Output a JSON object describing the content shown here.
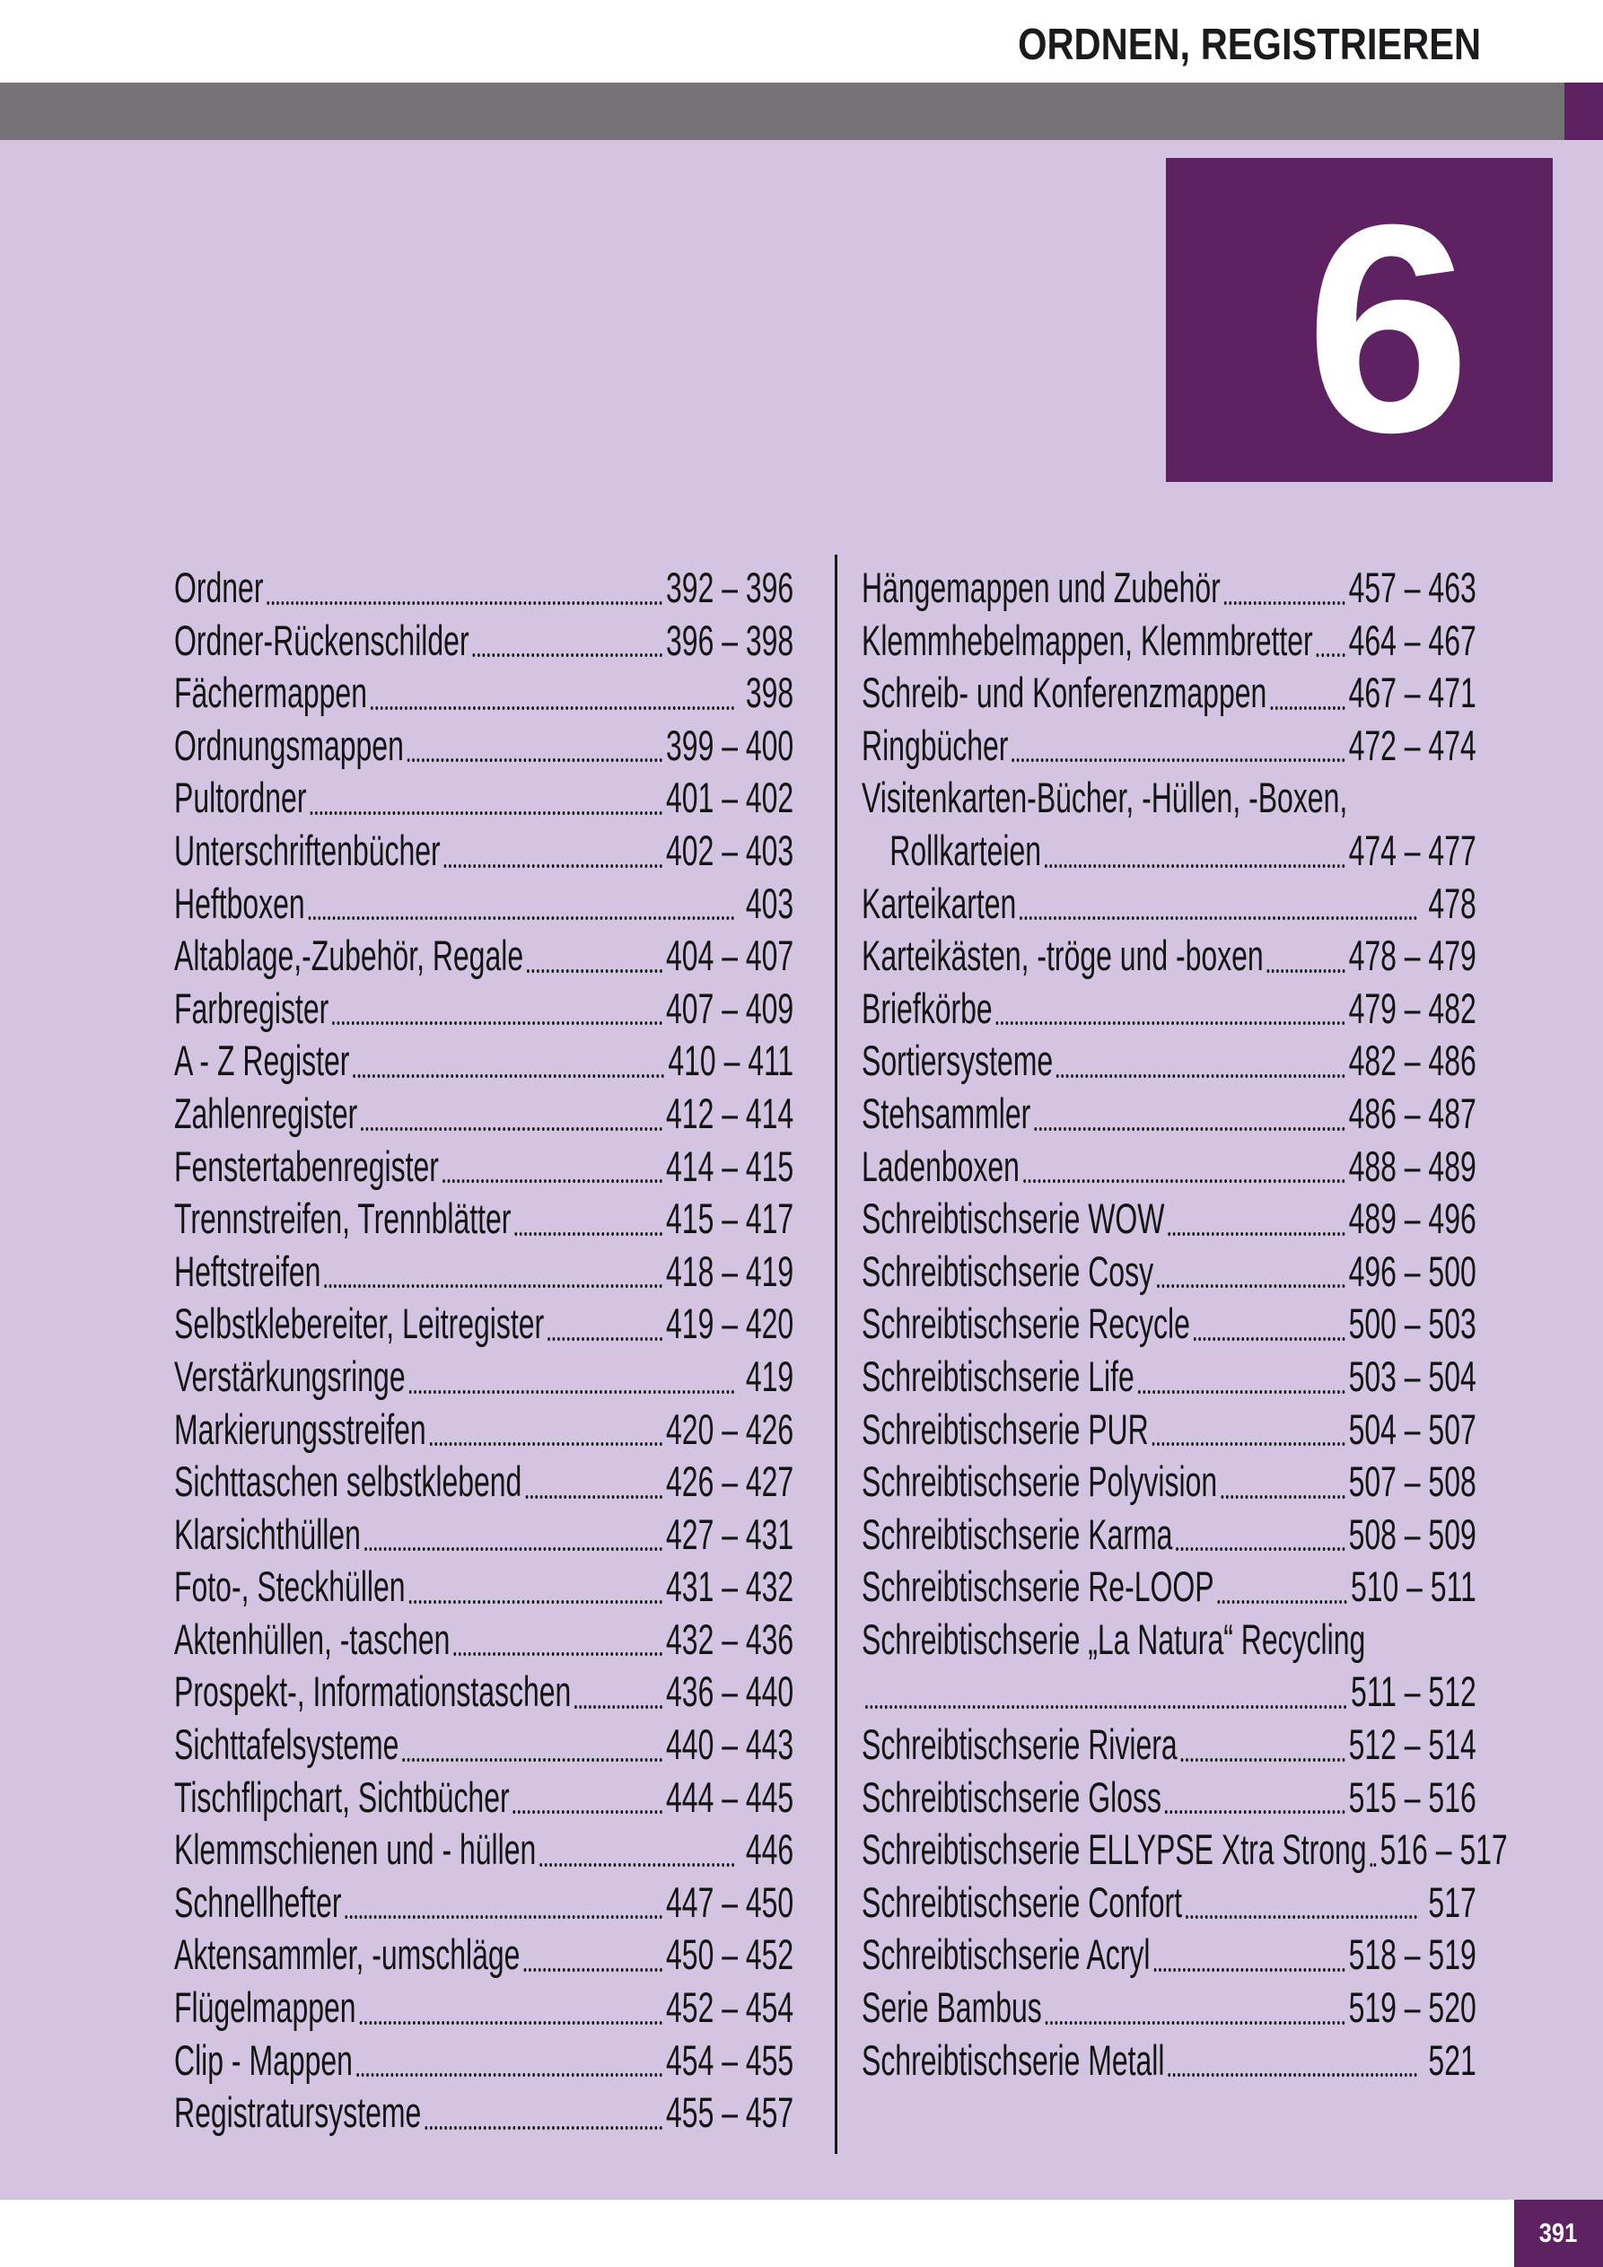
{
  "header": {
    "title": "ORDNEN, REGISTRIEREN"
  },
  "chapter": {
    "number": "6"
  },
  "footer": {
    "page_number": "391"
  },
  "colors": {
    "accent_purple": "#5e2162",
    "lavender_background": "#d3c4e1",
    "gray_bar": "#757175",
    "text": "#141414"
  },
  "toc": {
    "left_column": [
      {
        "label": "Ordner",
        "pages": "392 – 396"
      },
      {
        "label": "Ordner-Rückenschilder",
        "pages": "396 – 398"
      },
      {
        "label": "Fächermappen",
        "pages": " 398"
      },
      {
        "label": "Ordnungsmappen",
        "pages": "399 – 400"
      },
      {
        "label": "Pultordner",
        "pages": "401 – 402"
      },
      {
        "label": "Unterschriftenbücher",
        "pages": "402 – 403"
      },
      {
        "label": "Heftboxen",
        "pages": " 403"
      },
      {
        "label": "Altablage,-Zubehör, Regale",
        "pages": "404 – 407"
      },
      {
        "label": "Farbregister",
        "pages": "407 – 409"
      },
      {
        "label": "A - Z Register",
        "pages": "410 – 411"
      },
      {
        "label": "Zahlenregister",
        "pages": "412 – 414"
      },
      {
        "label": "Fenstertabenregister",
        "pages": "414 – 415"
      },
      {
        "label": "Trennstreifen, Trennblätter",
        "pages": "415 – 417"
      },
      {
        "label": "Heftstreifen",
        "pages": "418 – 419"
      },
      {
        "label": "Selbstklebereiter, Leitregister",
        "pages": "419 – 420"
      },
      {
        "label": "Verstärkungsringe",
        "pages": " 419"
      },
      {
        "label": "Markierungsstreifen",
        "pages": "420 – 426"
      },
      {
        "label": "Sichttaschen selbstklebend",
        "pages": "426 – 427"
      },
      {
        "label": "Klarsichthüllen",
        "pages": "427 – 431"
      },
      {
        "label": "Foto-, Steckhüllen",
        "pages": "431 – 432"
      },
      {
        "label": "Aktenhüllen, -taschen",
        "pages": "432 – 436"
      },
      {
        "label": "Prospekt-, Informationstaschen",
        "pages": "436 – 440"
      },
      {
        "label": "Sichttafelsysteme",
        "pages": "440 – 443"
      },
      {
        "label": "Tischflipchart, Sichtbücher",
        "pages": "444 – 445"
      },
      {
        "label": "Klemmschienen und - hüllen",
        "pages": " 446"
      },
      {
        "label": "Schnellhefter",
        "pages": "447 – 450"
      },
      {
        "label": "Aktensammler, -umschläge",
        "pages": "450 – 452"
      },
      {
        "label": "Flügelmappen",
        "pages": "452 – 454"
      },
      {
        "label": "Clip - Mappen",
        "pages": "454 – 455"
      },
      {
        "label": "Registratursysteme",
        "pages": "455 – 457"
      }
    ],
    "right_column": [
      {
        "label": "Hängemappen und Zubehör",
        "pages": "457 – 463"
      },
      {
        "label": "Klemmhebelmappen, Klemmbretter",
        "pages": "464 – 467"
      },
      {
        "label": "Schreib- und Konferenzmappen",
        "pages": "467 – 471"
      },
      {
        "label": "Ringbücher",
        "pages": "472 – 474"
      },
      {
        "label": "Visitenkarten-Bücher, -Hüllen, -Boxen,",
        "pages": ""
      },
      {
        "label": "Rollkarteien",
        "pages": "474 – 477",
        "indent": true
      },
      {
        "label": "Karteikarten",
        "pages": " 478"
      },
      {
        "label": "Karteikästen, -tröge und -boxen",
        "pages": "478 – 479"
      },
      {
        "label": "Briefkörbe",
        "pages": "479 – 482"
      },
      {
        "label": "Sortiersysteme",
        "pages": "482 – 486"
      },
      {
        "label": "Stehsammler",
        "pages": "486 – 487"
      },
      {
        "label": "Ladenboxen",
        "pages": "488 – 489"
      },
      {
        "label": "Schreibtischserie WOW",
        "pages": "489 – 496"
      },
      {
        "label": "Schreibtischserie Cosy",
        "pages": "496 – 500"
      },
      {
        "label": "Schreibtischserie Recycle",
        "pages": "500 – 503"
      },
      {
        "label": "Schreibtischserie Life",
        "pages": "503 – 504"
      },
      {
        "label": "Schreibtischserie PUR",
        "pages": "504 – 507"
      },
      {
        "label": "Schreibtischserie Polyvision",
        "pages": "507 – 508"
      },
      {
        "label": "Schreibtischserie Karma",
        "pages": "508 – 509"
      },
      {
        "label": "Schreibtischserie Re-LOOP",
        "pages": "510 – 511"
      },
      {
        "label": "Schreibtischserie „La Natura“ Recycling",
        "pages": ""
      },
      {
        "label": "",
        "pages": "511 – 512"
      },
      {
        "label": "Schreibtischserie Riviera",
        "pages": "512 – 514"
      },
      {
        "label": "Schreibtischserie Gloss",
        "pages": "515 – 516"
      },
      {
        "label": "Schreibtischserie ELLYPSE Xtra Strong",
        "pages": "516 – 517"
      },
      {
        "label": "Schreibtischserie Confort",
        "pages": " 517"
      },
      {
        "label": "Schreibtischserie Acryl",
        "pages": "518 – 519"
      },
      {
        "label": "Serie Bambus",
        "pages": "519 – 520"
      },
      {
        "label": "Schreibtischserie Metall",
        "pages": " 521"
      }
    ]
  }
}
